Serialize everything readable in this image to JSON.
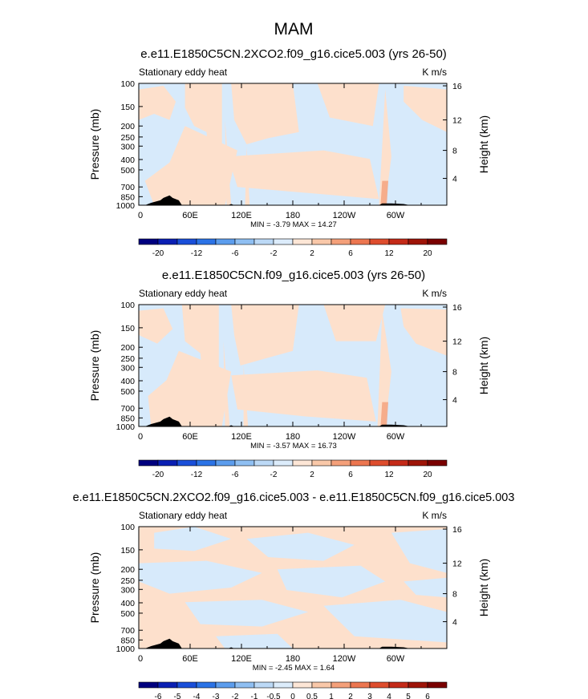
{
  "page": {
    "title": "MAM"
  },
  "colors": {
    "pos_fill": "#fde0cc",
    "neg_fill": "#d7eafb",
    "terrain": "#000000"
  },
  "chart_data": [
    {
      "type": "heatmap",
      "title": "e.e11.E1850C5CN.2XCO2.f09_g16.cice5.003 (yrs 26-50)",
      "left_label": "Stationary eddy heat",
      "units": "K m/s",
      "ylabel": "Pressure (mb)",
      "y2label": "Height (km)",
      "x_ticks": [
        "0",
        "60E",
        "120E",
        "180",
        "120W",
        "60W"
      ],
      "y_ticks": [
        "100",
        "150",
        "200",
        "250",
        "300",
        "400",
        "500",
        "700",
        "850",
        "1000"
      ],
      "y2_ticks": [
        "4",
        "8",
        "12",
        "16"
      ],
      "stats": "MIN = -3.79  MAX = 14.27",
      "min": -3.79,
      "max": 14.27,
      "colorbar_labels": [
        "-20",
        "-12",
        "-6",
        "-2",
        "2",
        "6",
        "12",
        "20"
      ],
      "colorbar_colors": [
        "#00007f",
        "#0a1fb3",
        "#1a4fd9",
        "#2b73e6",
        "#5c9ded",
        "#8fbff2",
        "#bcd9f6",
        "#dcecfb",
        "#fde6d6",
        "#f9c8a9",
        "#f4a07a",
        "#ec7650",
        "#de4d2d",
        "#c42a18",
        "#9e1408",
        "#7a0000"
      ]
    },
    {
      "type": "heatmap",
      "title": "e.e11.E1850C5CN.f09_g16.cice5.003 (yrs 26-50)",
      "left_label": "Stationary eddy heat",
      "units": "K m/s",
      "ylabel": "Pressure (mb)",
      "y2label": "Height (km)",
      "x_ticks": [
        "0",
        "60E",
        "120E",
        "180",
        "120W",
        "60W"
      ],
      "y_ticks": [
        "100",
        "150",
        "200",
        "250",
        "300",
        "400",
        "500",
        "700",
        "850",
        "1000"
      ],
      "y2_ticks": [
        "4",
        "8",
        "12",
        "16"
      ],
      "stats": "MIN = -3.57  MAX = 16.73",
      "min": -3.57,
      "max": 16.73,
      "colorbar_labels": [
        "-20",
        "-12",
        "-6",
        "-2",
        "2",
        "6",
        "12",
        "20"
      ],
      "colorbar_colors": [
        "#00007f",
        "#0a1fb3",
        "#1a4fd9",
        "#2b73e6",
        "#5c9ded",
        "#8fbff2",
        "#bcd9f6",
        "#dcecfb",
        "#fde6d6",
        "#f9c8a9",
        "#f4a07a",
        "#ec7650",
        "#de4d2d",
        "#c42a18",
        "#9e1408",
        "#7a0000"
      ]
    },
    {
      "type": "heatmap",
      "title": "e.e11.E1850C5CN.2XCO2.f09_g16.cice5.003 - e.e11.E1850C5CN.f09_g16.cice5.003",
      "left_label": "Stationary eddy heat",
      "units": "K m/s",
      "ylabel": "Pressure (mb)",
      "y2label": "Height (km)",
      "x_ticks": [
        "0",
        "60E",
        "120E",
        "180",
        "120W",
        "60W"
      ],
      "y_ticks": [
        "100",
        "150",
        "200",
        "250",
        "300",
        "400",
        "500",
        "700",
        "850",
        "1000"
      ],
      "y2_ticks": [
        "4",
        "8",
        "12",
        "16"
      ],
      "stats": "MIN = -2.45  MAX =  1.64",
      "min": -2.45,
      "max": 1.64,
      "colorbar_labels": [
        "-6",
        "-5",
        "-4",
        "-3",
        "-2",
        "-1",
        "-0.5",
        "0",
        "0.5",
        "1",
        "2",
        "3",
        "4",
        "5",
        "6"
      ],
      "colorbar_colors": [
        "#00007f",
        "#0a1fb3",
        "#1a4fd9",
        "#2b73e6",
        "#5c9ded",
        "#8fbff2",
        "#bcd9f6",
        "#dcecfb",
        "#fde6d6",
        "#f9c8a9",
        "#f4a07a",
        "#ec7650",
        "#de4d2d",
        "#c42a18",
        "#9e1408",
        "#7a0000"
      ]
    }
  ]
}
